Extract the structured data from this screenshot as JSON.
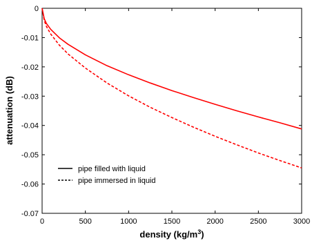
{
  "chart_data": {
    "type": "line",
    "xlabel": "density (kg/m",
    "xlabel_superscript": "3",
    "xlabel_suffix": ")",
    "ylabel": "attenuation (dB)",
    "xlim": [
      0,
      3000
    ],
    "ylim": [
      -0.07,
      0
    ],
    "x_ticks": [
      0,
      500,
      1000,
      1500,
      2000,
      2500,
      3000
    ],
    "x_tick_labels": [
      "0",
      "500",
      "1000",
      "1500",
      "2000",
      "2500",
      "3000"
    ],
    "y_ticks": [
      0,
      -0.01,
      -0.02,
      -0.03,
      -0.04,
      -0.05,
      -0.06,
      -0.07
    ],
    "y_tick_labels": [
      "0",
      "-0.01",
      "-0.02",
      "-0.03",
      "-0.04",
      "-0.05",
      "-0.06",
      "-0.07"
    ],
    "grid": false,
    "legend_position": "lower-left",
    "color": "#ff0000",
    "series": [
      {
        "name": "pipe filled with liquid",
        "line_style": "solid",
        "x": [
          0,
          25,
          50,
          100,
          200,
          300,
          500,
          750,
          1000,
          1250,
          1500,
          1750,
          2000,
          2250,
          2500,
          2750,
          3000
        ],
        "y": [
          0,
          -0.0036,
          -0.0052,
          -0.0072,
          -0.0101,
          -0.0123,
          -0.0159,
          -0.0196,
          -0.0227,
          -0.0255,
          -0.0281,
          -0.0305,
          -0.0328,
          -0.035,
          -0.0371,
          -0.0391,
          -0.0412
        ]
      },
      {
        "name": "pipe immersed in liquid",
        "line_style": "dashed",
        "x": [
          0,
          25,
          50,
          100,
          200,
          300,
          500,
          750,
          1000,
          1250,
          1500,
          1750,
          2000,
          2250,
          2500,
          2750,
          3000
        ],
        "y": [
          0,
          -0.0042,
          -0.0062,
          -0.0088,
          -0.0126,
          -0.0156,
          -0.0204,
          -0.0255,
          -0.0299,
          -0.0338,
          -0.0373,
          -0.0406,
          -0.0437,
          -0.0466,
          -0.0494,
          -0.052,
          -0.0545
        ]
      }
    ]
  }
}
